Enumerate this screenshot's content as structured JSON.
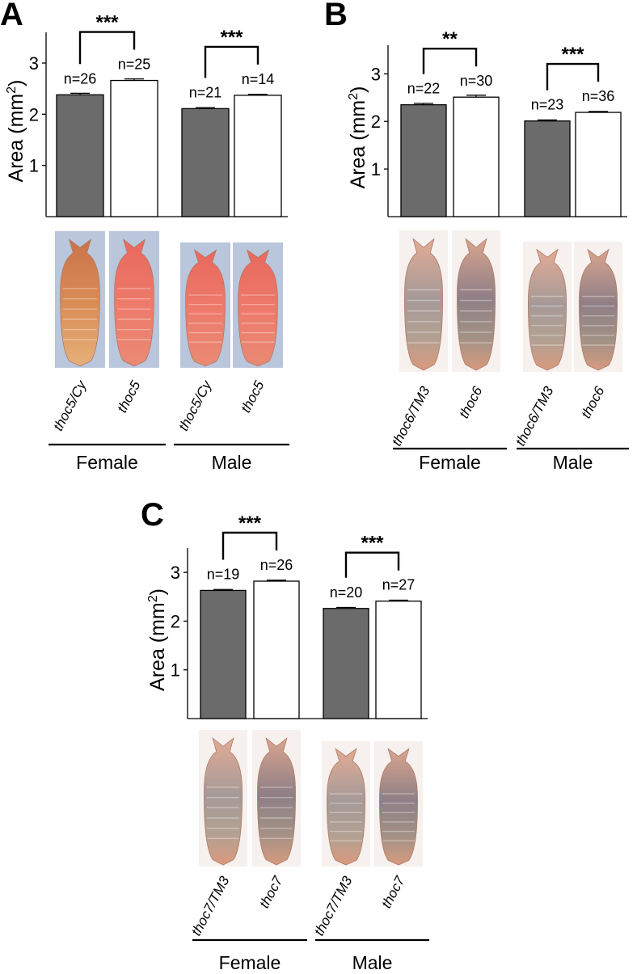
{
  "colors": {
    "heterozygote_bar": "#6b6b6b",
    "mutant_bar": "#ffffff",
    "pupa_orange": "#d9874e",
    "pupa_red": "#e86f62",
    "pupa_pale": "#d7a591",
    "photo_bg_blue": "#b9c6dc"
  },
  "chart_data": [
    {
      "type": "bar",
      "panel": "A",
      "ylabel_main": "Area (mm",
      "ylabel_sup": "2",
      "ylabel_end": ")",
      "ylim": [
        0,
        3.6
      ],
      "yticks": [
        "1",
        "2",
        "3"
      ],
      "categories": [
        "thoc5/Cy",
        "thoc5",
        "thoc5/Cy",
        "thoc5"
      ],
      "values": [
        2.38,
        2.66,
        2.11,
        2.37
      ],
      "errors": [
        0.03,
        0.03,
        0.02,
        0.02
      ],
      "n_labels": [
        "n=26",
        "n=25",
        "n=21",
        "n=14"
      ],
      "groups": [
        {
          "label": "Female",
          "significance": "***"
        },
        {
          "label": "Male",
          "significance": "***"
        }
      ],
      "pupa_style": "thoc5"
    },
    {
      "type": "bar",
      "panel": "B",
      "ylabel_main": "Area (mm",
      "ylabel_sup": "2",
      "ylabel_end": ")",
      "ylim": [
        0,
        3.6
      ],
      "yticks": [
        "1",
        "2",
        "3"
      ],
      "categories": [
        "thoc6/TM3",
        "thoc6",
        "thoc6/TM3",
        "thoc6"
      ],
      "values": [
        2.35,
        2.51,
        2.01,
        2.19
      ],
      "errors": [
        0.03,
        0.04,
        0.02,
        0.02
      ],
      "n_labels": [
        "n=22",
        "n=30",
        "n=23",
        "n=36"
      ],
      "groups": [
        {
          "label": "Female",
          "significance": "**"
        },
        {
          "label": "Male",
          "significance": "***"
        }
      ],
      "pupa_style": "pale"
    },
    {
      "type": "bar",
      "panel": "C",
      "ylabel_main": "Area (mm",
      "ylabel_sup": "2",
      "ylabel_end": ")",
      "ylim": [
        0,
        3.5
      ],
      "yticks": [
        "1",
        "2",
        "3"
      ],
      "categories": [
        "thoc7/TM3",
        "thoc7",
        "thoc7/TM3",
        "thoc7"
      ],
      "values": [
        2.63,
        2.82,
        2.26,
        2.41
      ],
      "errors": [
        0.02,
        0.02,
        0.02,
        0.02
      ],
      "n_labels": [
        "n=19",
        "n=26",
        "n=20",
        "n=27"
      ],
      "groups": [
        {
          "label": "Female",
          "significance": "***"
        },
        {
          "label": "Male",
          "significance": "***"
        }
      ],
      "pupa_style": "pale"
    }
  ]
}
